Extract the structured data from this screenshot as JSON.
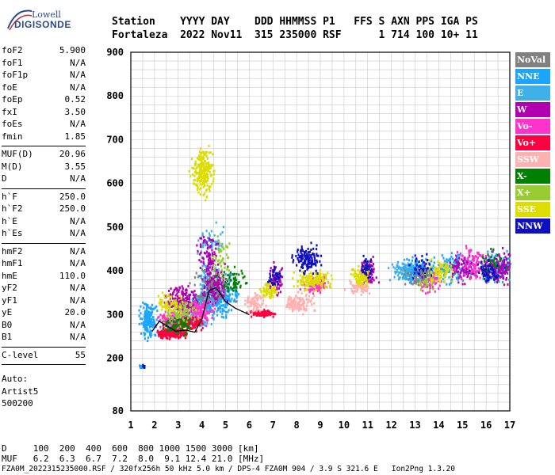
{
  "logo": {
    "line1": "Lowell",
    "line2": "DIGISONDE"
  },
  "header": {
    "row1": "Station    YYYY DAY    DDD HHMMSS P1   FFS S AXN PPS IGA PS",
    "row2": "Fortaleza  2022 Nov11  315 235000 RSF      1 714 100 10+ 11"
  },
  "params": [
    {
      "group": [
        {
          "k": "foF2",
          "v": "5.900"
        },
        {
          "k": "foF1",
          "v": "N/A"
        },
        {
          "k": "foF1p",
          "v": "N/A"
        },
        {
          "k": "foE",
          "v": "N/A"
        },
        {
          "k": "foEp",
          "v": "0.52"
        },
        {
          "k": "fxI",
          "v": "3.50"
        },
        {
          "k": "foEs",
          "v": "N/A"
        },
        {
          "k": "fmin",
          "v": "1.85"
        }
      ]
    },
    {
      "group": [
        {
          "k": "MUF(D)",
          "v": "20.96"
        },
        {
          "k": "M(D)",
          "v": "3.55"
        },
        {
          "k": "D",
          "v": "N/A"
        }
      ]
    },
    {
      "group": [
        {
          "k": "h`F",
          "v": "250.0"
        },
        {
          "k": "h`F2",
          "v": "250.0"
        },
        {
          "k": "h`E",
          "v": "N/A"
        },
        {
          "k": "h`Es",
          "v": "N/A"
        }
      ]
    },
    {
      "group": [
        {
          "k": "hmF2",
          "v": "N/A"
        },
        {
          "k": "hmF1",
          "v": "N/A"
        },
        {
          "k": "hmE",
          "v": "110.0"
        },
        {
          "k": "yF2",
          "v": "N/A"
        },
        {
          "k": "yF1",
          "v": "N/A"
        },
        {
          "k": "yE",
          "v": "20.0"
        },
        {
          "k": "B0",
          "v": "N/A"
        },
        {
          "k": "B1",
          "v": "N/A"
        }
      ]
    },
    {
      "group": [
        {
          "k": "C-level",
          "v": "55"
        }
      ]
    }
  ],
  "auto": {
    "label": "Auto:",
    "artist": "Artist5",
    "version": "500200"
  },
  "legend": [
    {
      "label": "NoVal",
      "color": "#808080"
    },
    {
      "label": "NNE",
      "color": "#1aa6ff"
    },
    {
      "label": "E",
      "color": "#3fb0e8"
    },
    {
      "label": "W",
      "color": "#b000b0"
    },
    {
      "label": "Vo-",
      "color": "#ff33cc"
    },
    {
      "label": "Vo+",
      "color": "#ff0040"
    },
    {
      "label": "SSW",
      "color": "#ffb0b0"
    },
    {
      "label": "X-",
      "color": "#008000"
    },
    {
      "label": "X+",
      "color": "#99cc33"
    },
    {
      "label": "SSE",
      "color": "#dddd00"
    },
    {
      "label": "NNW",
      "color": "#1010c0"
    }
  ],
  "bottom": {
    "d_row": "D     100  200  400  600  800 1000 1500 3000 [km]",
    "muf_row": "MUF   6.2  6.3  6.7  7.2  8.0  9.1 12.4 21.0 [MHz]",
    "footer": "FZA0M_2022315235000.RSF / 320fx256h 50 kHz 5.0 km / DPS-4 FZA0M 904 / 3.9 S 321.6 E   Ion2Png 1.3.20"
  },
  "chart_data": {
    "type": "scatter",
    "title": "",
    "xlabel": "",
    "ylabel": "",
    "xlim": [
      1,
      17
    ],
    "ylim": [
      80,
      900
    ],
    "xticks": [
      1,
      2,
      3,
      4,
      5,
      6,
      7,
      8,
      9,
      10,
      11,
      12,
      13,
      14,
      15,
      16,
      17
    ],
    "yticks": [
      80,
      200,
      300,
      400,
      500,
      600,
      700,
      800,
      900
    ],
    "x_minor_step": 0.5,
    "y_gridlines": [
      100,
      120,
      140,
      160,
      180,
      200,
      220,
      240,
      260,
      280,
      300,
      320,
      340,
      360,
      380,
      400,
      420,
      440,
      460,
      480,
      500,
      520,
      540,
      560,
      580,
      600,
      620,
      640,
      660,
      680,
      700,
      720,
      740,
      760,
      780,
      800,
      820,
      840,
      860,
      880
    ],
    "grid": true,
    "series": [
      {
        "color": "#1aa6ff",
        "clusters": [
          [
            1.7,
            290,
            0.5,
            50,
            180
          ],
          [
            4.4,
            330,
            1.2,
            40,
            180
          ],
          [
            5.0,
            350,
            0.8,
            60,
            80
          ],
          [
            13.0,
            400,
            0.9,
            40,
            170
          ],
          [
            14.5,
            410,
            1.2,
            45,
            160
          ],
          [
            16.5,
            410,
            1.0,
            50,
            160
          ],
          [
            1.4,
            183,
            0.2,
            6,
            12
          ]
        ]
      },
      {
        "color": "#3fb0e8",
        "clusters": [
          [
            3.5,
            290,
            1.2,
            20,
            120
          ],
          [
            4.2,
            380,
            0.6,
            80,
            120
          ],
          [
            12.5,
            400,
            0.8,
            35,
            90
          ],
          [
            4.3,
            470,
            0.7,
            50,
            60
          ]
        ]
      },
      {
        "color": "#b000b0",
        "clusters": [
          [
            3.2,
            330,
            1.0,
            50,
            200
          ],
          [
            4.5,
            370,
            0.7,
            60,
            160
          ],
          [
            7.1,
            380,
            0.4,
            50,
            70
          ],
          [
            11.0,
            400,
            0.5,
            40,
            80
          ],
          [
            15.0,
            410,
            0.8,
            50,
            100
          ],
          [
            16.5,
            410,
            0.9,
            50,
            140
          ],
          [
            4.2,
            440,
            0.6,
            60,
            80
          ]
        ]
      },
      {
        "color": "#ff33cc",
        "clusters": [
          [
            2.8,
            290,
            1.0,
            30,
            150
          ],
          [
            4.0,
            310,
            0.6,
            40,
            120
          ],
          [
            8.8,
            370,
            0.8,
            30,
            80
          ],
          [
            13.6,
            380,
            0.8,
            40,
            80
          ],
          [
            15.5,
            420,
            1.0,
            50,
            100
          ]
        ]
      },
      {
        "color": "#ff0040",
        "clusters": [
          [
            2.7,
            260,
            0.8,
            15,
            200
          ],
          [
            6.5,
            305,
            0.7,
            10,
            120
          ],
          [
            3.5,
            280,
            1.0,
            20,
            100
          ]
        ]
      },
      {
        "color": "#ffb0b0",
        "clusters": [
          [
            8.0,
            330,
            0.9,
            30,
            120
          ],
          [
            10.6,
            365,
            0.7,
            20,
            60
          ],
          [
            6.2,
            330,
            0.6,
            30,
            70
          ]
        ]
      },
      {
        "color": "#008000",
        "clusters": [
          [
            3.0,
            280,
            0.9,
            30,
            90
          ],
          [
            5.2,
            380,
            0.8,
            40,
            60
          ],
          [
            16.2,
            420,
            0.8,
            50,
            40
          ]
        ]
      },
      {
        "color": "#99cc33",
        "clusters": [
          [
            3.1,
            310,
            1.0,
            40,
            90
          ],
          [
            13.4,
            380,
            0.6,
            30,
            40
          ],
          [
            4.8,
            430,
            0.6,
            60,
            50
          ]
        ]
      },
      {
        "color": "#dddd00",
        "clusters": [
          [
            4.0,
            630,
            0.6,
            70,
            230
          ],
          [
            8.7,
            380,
            1.0,
            30,
            150
          ],
          [
            6.8,
            360,
            0.5,
            30,
            70
          ],
          [
            10.7,
            390,
            0.6,
            30,
            90
          ],
          [
            14.0,
            400,
            0.8,
            40,
            80
          ],
          [
            2.6,
            330,
            0.8,
            40,
            60
          ]
        ]
      },
      {
        "color": "#1010c0",
        "clusters": [
          [
            8.4,
            430,
            0.8,
            45,
            150
          ],
          [
            7.1,
            390,
            0.4,
            30,
            40
          ],
          [
            11.0,
            410,
            0.4,
            30,
            40
          ],
          [
            13.2,
            410,
            0.6,
            40,
            50
          ],
          [
            16.0,
            400,
            0.8,
            40,
            60
          ],
          [
            1.5,
            183,
            0.15,
            5,
            8
          ]
        ]
      },
      {
        "color": "#808080",
        "clusters": [
          [
            4.3,
            360,
            1.2,
            60,
            60
          ],
          [
            13.0,
            390,
            1.0,
            40,
            40
          ]
        ]
      }
    ],
    "trace": {
      "color": "#000000",
      "x": [
        1.9,
        2.2,
        2.5,
        2.9,
        3.3,
        3.7,
        4.0,
        4.3,
        4.6,
        5.0,
        5.4,
        5.8,
        6.0
      ],
      "y": [
        262,
        285,
        275,
        262,
        265,
        260,
        290,
        355,
        362,
        330,
        315,
        305,
        300
      ]
    }
  }
}
